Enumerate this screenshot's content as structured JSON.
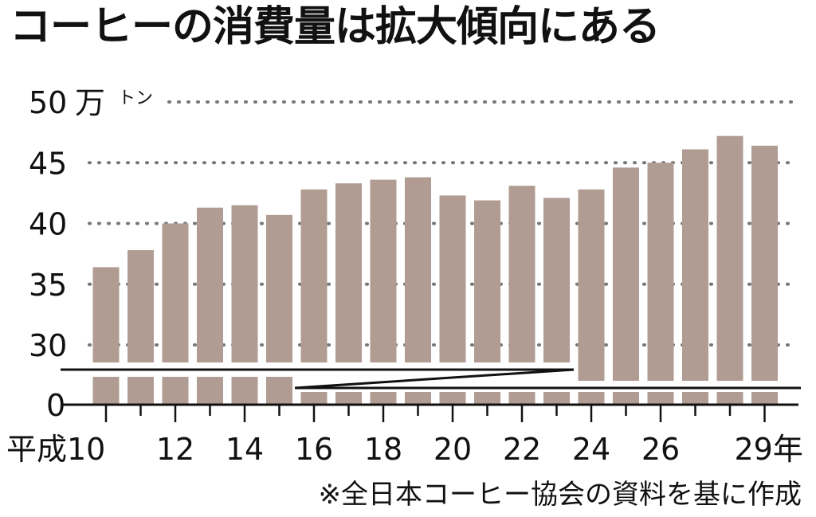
{
  "chart_data": {
    "type": "bar",
    "title": "コーヒーの消費量は拡大傾向にある",
    "source": "※全日本コーヒー協会の資料を基に作成",
    "unit": "万トン",
    "y_unit_label": "万",
    "y_unit_suffix": "トン",
    "x": [
      10,
      11,
      12,
      13,
      14,
      15,
      16,
      17,
      18,
      19,
      20,
      21,
      22,
      23,
      24,
      25,
      26,
      27,
      28,
      29
    ],
    "values": [
      36.4,
      37.8,
      40.0,
      41.3,
      41.5,
      40.7,
      42.8,
      43.3,
      43.6,
      43.8,
      42.3,
      41.9,
      43.1,
      42.1,
      42.8,
      44.6,
      45.0,
      46.1,
      47.2,
      46.4
    ],
    "x_tick_labels": [
      {
        "x": 10,
        "label": "平成10"
      },
      {
        "x": 12,
        "label": "12"
      },
      {
        "x": 14,
        "label": "14"
      },
      {
        "x": 16,
        "label": "16"
      },
      {
        "x": 18,
        "label": "18"
      },
      {
        "x": 20,
        "label": "20"
      },
      {
        "x": 22,
        "label": "22"
      },
      {
        "x": 24,
        "label": "24"
      },
      {
        "x": 26,
        "label": "26"
      },
      {
        "x": 29,
        "label": "29年"
      }
    ],
    "y_ticks": [
      30,
      35,
      40,
      45,
      50
    ],
    "y_zero_label": "0",
    "ylim": [
      30,
      50
    ],
    "axis_break": true,
    "grid": "dotted",
    "bar_color": "#b09c92"
  }
}
